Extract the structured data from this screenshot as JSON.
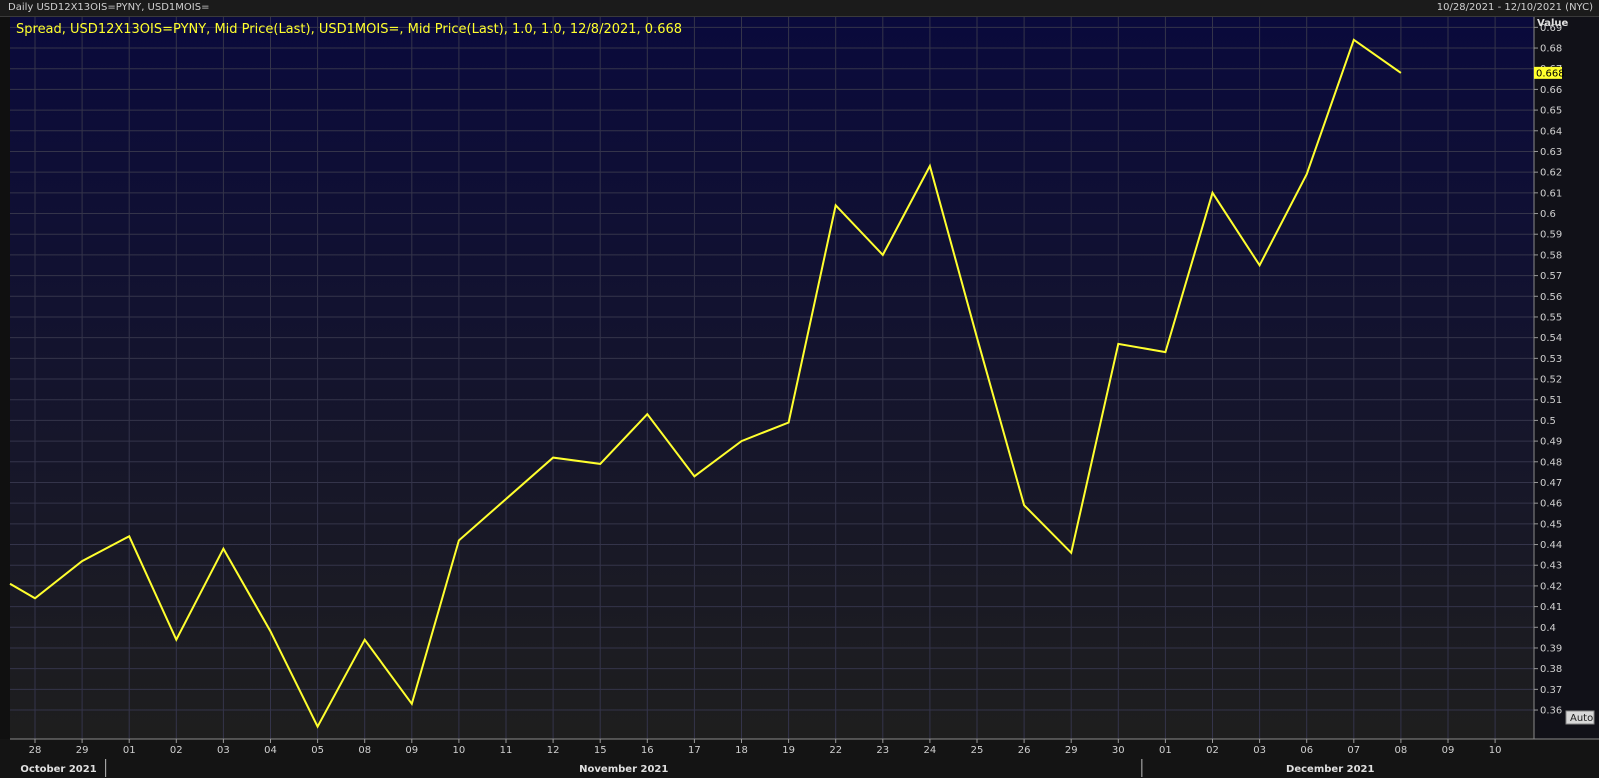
{
  "header": {
    "title": "Daily USD12X13OIS=PYNY, USD1MOIS=",
    "date_range": "10/28/2021 - 12/10/2021 (NYC)"
  },
  "legend": {
    "text": "Spread, USD12X13OIS=PYNY, Mid Price(Last), USD1MOIS=, Mid Price(Last),  1.0, 1.0, 12/8/2021, 0.668"
  },
  "y_axis": {
    "title": "Value",
    "last_value_label": "0.668",
    "auto_button": "Auto"
  },
  "colors": {
    "series": "#ffff2e",
    "background_top": "#0a0a3a",
    "background_bottom": "#1e1e1e",
    "grid": "#3a3a4a",
    "last_value_badge": "#ffff2e"
  },
  "months": [
    {
      "label": "October 2021",
      "start": "28",
      "end": "29"
    },
    {
      "label": "November 2021",
      "start": "01",
      "end": "30"
    },
    {
      "label": "December 2021",
      "start": "01",
      "end": "10"
    }
  ],
  "chart_data": {
    "type": "line",
    "x": [
      "28",
      "29",
      "01",
      "02",
      "03",
      "04",
      "05",
      "08",
      "09",
      "10",
      "11",
      "12",
      "15",
      "16",
      "17",
      "18",
      "19",
      "22",
      "23",
      "24",
      "25",
      "26",
      "29",
      "30",
      "01",
      "02",
      "03",
      "06",
      "07",
      "08",
      "09",
      "10"
    ],
    "series": [
      {
        "name": "Spread, USD12X13OIS=PYNY, Mid Price(Last), USD1MOIS=, Mid Price(Last)",
        "values": [
          0.414,
          0.432,
          0.444,
          0.394,
          0.438,
          0.398,
          0.352,
          0.394,
          0.363,
          0.442,
          0.462,
          0.482,
          0.479,
          0.503,
          0.473,
          0.49,
          0.499,
          0.604,
          0.58,
          0.623,
          0.54,
          0.459,
          0.436,
          0.537,
          0.533,
          0.61,
          0.575,
          0.619,
          0.684,
          0.668,
          null,
          null
        ]
      }
    ],
    "start_value": 0.421,
    "y_ticks": [
      "0.36",
      "0.37",
      "0.38",
      "0.39",
      "0.4",
      "0.41",
      "0.42",
      "0.43",
      "0.44",
      "0.45",
      "0.46",
      "0.47",
      "0.48",
      "0.49",
      "0.5",
      "0.51",
      "0.52",
      "0.53",
      "0.54",
      "0.55",
      "0.56",
      "0.57",
      "0.58",
      "0.59",
      "0.6",
      "0.61",
      "0.62",
      "0.63",
      "0.64",
      "0.65",
      "0.66",
      "0.67",
      "0.68",
      "0.69"
    ],
    "ylim": [
      0.346,
      0.695
    ],
    "grid": true,
    "legend_position": "top-left"
  }
}
